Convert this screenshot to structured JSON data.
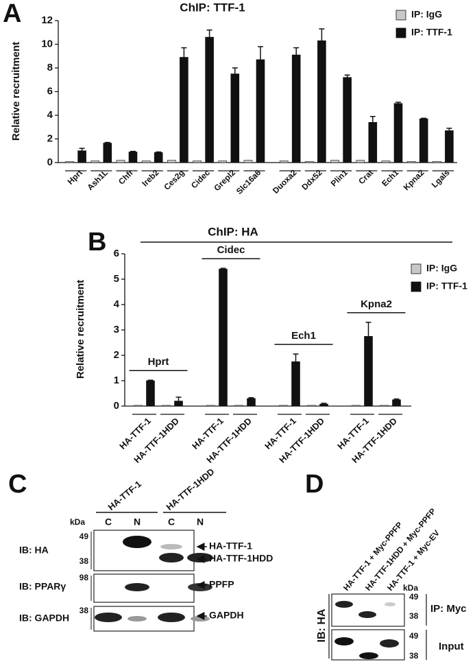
{
  "chart_data": [
    {
      "type": "bar",
      "panel": "A",
      "title": "ChIP: TTF-1",
      "y_label": "Relative recruitment",
      "categories": [
        "Hprt",
        "Ash1L",
        "Chfr",
        "Ireb2",
        "Ces2g",
        "Cidec",
        "Grepl2",
        "Slc16a6",
        "Duoxa2",
        "Ddx52",
        "Plin1",
        "Crat",
        "Ech1",
        "Kpna2",
        "Lgals"
      ],
      "series": [
        {
          "name": "IP: IgG",
          "color": "#c8c8c8",
          "values": [
            0.1,
            0.15,
            0.2,
            0.15,
            0.2,
            0.15,
            0.15,
            0.2,
            0.15,
            0.1,
            0.2,
            0.2,
            0.15,
            0.1,
            0.1
          ]
        },
        {
          "name": "IP: TTF-1",
          "color": "#111111",
          "values": [
            1.0,
            1.65,
            0.9,
            0.85,
            8.9,
            10.6,
            7.5,
            8.7,
            9.1,
            10.3,
            7.2,
            3.4,
            5.0,
            3.7,
            2.7
          ],
          "errors": [
            0.2,
            0.05,
            0.05,
            0.05,
            0.8,
            0.6,
            0.5,
            1.1,
            0.6,
            1.0,
            0.2,
            0.5,
            0.1,
            0.05,
            0.2
          ]
        }
      ],
      "ylim": [
        0,
        12
      ],
      "yticks": [
        0,
        2,
        4,
        6,
        8,
        10,
        12
      ],
      "legend": "upper right"
    },
    {
      "type": "bar",
      "panel": "B",
      "title": "ChIP: HA",
      "y_label": "Relative recruitment",
      "categories": [
        "HA-TTF-1",
        "HA-TTF-1HDD",
        "HA-TTF-1",
        "HA-TTF-1HDD",
        "HA-TTF-1",
        "HA-TTF-1HDD",
        "HA-TTF-1",
        "HA-TTF-1HDD"
      ],
      "groups": [
        "Hprt",
        "Cidec",
        "Ech1",
        "Kpna2"
      ],
      "series": [
        {
          "name": "IP: IgG",
          "color": "#c8c8c8",
          "values": [
            0.03,
            0.03,
            0.03,
            0.03,
            0.03,
            0.03,
            0.03,
            0.03
          ]
        },
        {
          "name": "IP: TTF-1",
          "color": "#111111",
          "values": [
            1.0,
            0.2,
            5.4,
            0.3,
            1.75,
            0.08,
            2.75,
            0.25
          ],
          "errors": [
            0.02,
            0.15,
            0.03,
            0.03,
            0.3,
            0.03,
            0.55,
            0.03
          ]
        }
      ],
      "ylim": [
        0,
        6
      ],
      "yticks": [
        0,
        1,
        2,
        3,
        4,
        5,
        6
      ],
      "legend": "upper right"
    }
  ],
  "panel_c": {
    "letter": "C",
    "groups": [
      "HA-TTF-1",
      "HA-TTF-1HDD"
    ],
    "kda": "kDa",
    "lanes": [
      "C",
      "N",
      "C",
      "N"
    ],
    "rows": [
      {
        "label": "IB: HA",
        "markers": [
          49,
          38
        ],
        "bands": [
          "HA-TTF-1",
          "HA-TTF-1HDD"
        ]
      },
      {
        "label": "IB: PPARγ",
        "markers": [
          98
        ],
        "bands": [
          "PPFP"
        ]
      },
      {
        "label": "IB: GAPDH",
        "markers": [
          38
        ],
        "bands": [
          "GAPDH"
        ]
      }
    ]
  },
  "panel_d": {
    "letter": "D",
    "lanes": [
      "HA-TTF-1 + Myc-PPFP",
      "HA-TTF-1HDD + Myc-PPFP",
      "HA-TTF-1 + Myc-EV"
    ],
    "kda": "kDa",
    "ib": "IB: HA",
    "rows": [
      {
        "label": "IP: Myc",
        "markers": [
          49,
          38
        ]
      },
      {
        "label": "Input",
        "markers": [
          49,
          38
        ]
      }
    ]
  }
}
